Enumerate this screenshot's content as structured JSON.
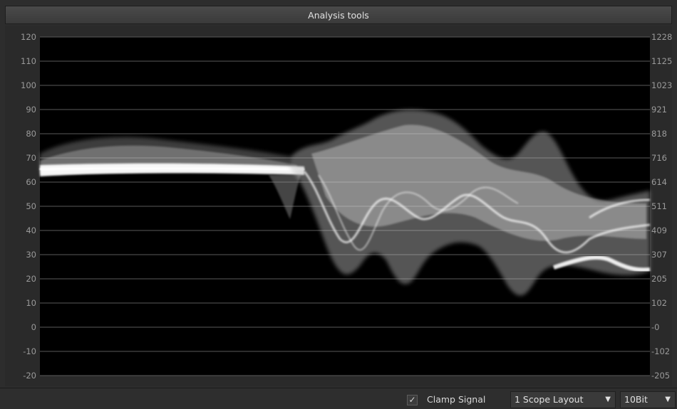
{
  "window": {
    "title": "Analysis tools"
  },
  "scope": {
    "left_axis_labels": [
      "120",
      "110",
      "100",
      "90",
      "80",
      "70",
      "60",
      "50",
      "40",
      "30",
      "20",
      "10",
      "0",
      "-10",
      "-20"
    ],
    "right_axis_labels": [
      "1228",
      "1125",
      "1023",
      "921",
      "818",
      "716",
      "614",
      "511",
      "409",
      "307",
      "205",
      "102",
      "-0",
      "-102",
      "-205"
    ],
    "left_axis_range": [
      -20,
      120
    ],
    "colors": {
      "plot_background": "#000000",
      "gridline": "#5a5a5a",
      "trace": "#ffffff",
      "label": "#9a9a9a"
    }
  },
  "bottom_bar": {
    "clamp_checkbox": {
      "checked": true,
      "check_glyph": "✓",
      "label": "Clamp Signal"
    },
    "layout_select": {
      "value": "1 Scope Layout",
      "arrow": "▼"
    },
    "bit_select": {
      "value": "10Bit",
      "arrow": "▼"
    }
  }
}
